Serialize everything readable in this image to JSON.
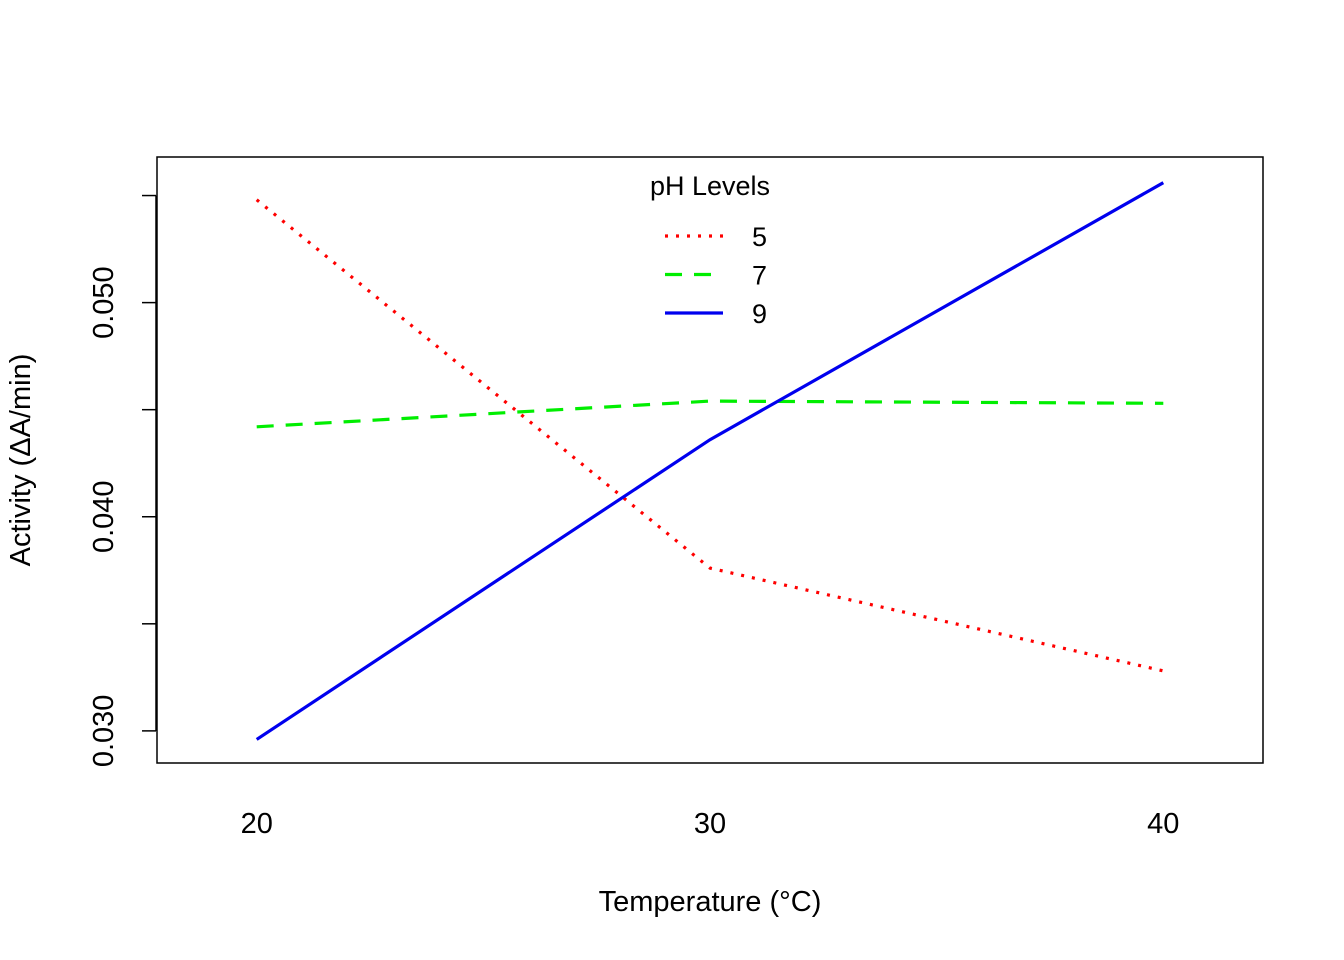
{
  "chart_data": {
    "type": "line",
    "title": "",
    "xlabel": "Temperature (°C)",
    "ylabel": "Activity (ΔA/min)",
    "x": [
      20,
      30,
      40
    ],
    "xlim": [
      17.8,
      42.2
    ],
    "ylim": [
      0.0285,
      0.0568
    ],
    "xticks": [
      20,
      30,
      40
    ],
    "xtick_labels": [
      "20",
      "30",
      "40"
    ],
    "yticks": [
      0.03,
      0.035,
      0.04,
      0.045,
      0.05,
      0.055
    ],
    "ytick_labels": [
      "0.030",
      "",
      "0.040",
      "",
      "0.050",
      ""
    ],
    "grid": false,
    "legend": {
      "title": "pH Levels",
      "position": "top"
    },
    "series": [
      {
        "name": "5",
        "values": [
          0.0548,
          0.0376,
          0.0328
        ],
        "color": "#ff0000",
        "style": "dotted"
      },
      {
        "name": "7",
        "values": [
          0.0442,
          0.0454,
          0.0453
        ],
        "color": "#00ee00",
        "style": "dashed"
      },
      {
        "name": "9",
        "values": [
          0.0296,
          0.0436,
          0.0556
        ],
        "color": "#0000ee",
        "style": "solid"
      }
    ]
  }
}
